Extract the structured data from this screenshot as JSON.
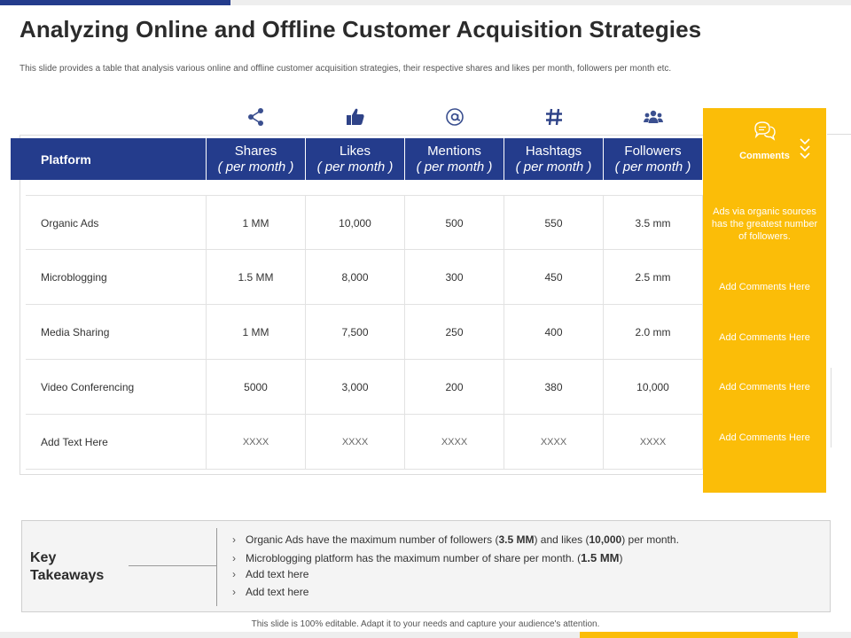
{
  "slide": {
    "title": "Analyzing Online and Offline Customer Acquisition Strategies",
    "subtitle": "This slide provides a table that analysis various online and offline customer acquisition strategies, their respective shares and likes per month, followers per month etc.",
    "footer": "This slide is 100% editable. Adapt it to your needs and capture your audience's attention."
  },
  "colors": {
    "header_blue": "#243c8c",
    "accent_yellow": "#fbbd08"
  },
  "table": {
    "platform_header": "Platform",
    "columns": [
      {
        "icon": "share-icon",
        "label": "Shares",
        "sub": "( per month )"
      },
      {
        "icon": "thumbs-up-icon",
        "label": "Likes",
        "sub": "( per month )"
      },
      {
        "icon": "at-sign-icon",
        "label": "Mentions",
        "sub": "( per month )"
      },
      {
        "icon": "hashtag-icon",
        "label": "Hashtags",
        "sub": "( per month )"
      },
      {
        "icon": "people-icon",
        "label": "Followers",
        "sub": "( per month )"
      }
    ],
    "rows": [
      {
        "platform": "Organic Ads",
        "values": [
          "1 MM",
          "10,000",
          "500",
          "550",
          "3.5 mm"
        ]
      },
      {
        "platform": "Microblogging",
        "values": [
          "1.5 MM",
          "8,000",
          "300",
          "450",
          "2.5 mm"
        ]
      },
      {
        "platform": "Media Sharing",
        "values": [
          "1 MM",
          "7,500",
          "250",
          "400",
          "2.0 mm"
        ]
      },
      {
        "platform": "Video Conferencing",
        "values": [
          "5000",
          "3,000",
          "200",
          "380",
          "10,000"
        ]
      },
      {
        "platform": "Add Text Here",
        "values": [
          "XXXX",
          "XXXX",
          "XXXX",
          "XXXX",
          "XXXX"
        ]
      }
    ]
  },
  "comments": {
    "icon": "chat-bubbles-icon",
    "header": "Comments",
    "notes": [
      "Ads via organic sources has the greatest number of followers.",
      "Add Comments Here",
      "Add Comments Here",
      "Add Comments Here",
      "Add Comments Here"
    ]
  },
  "takeaways": {
    "label_line1": "Key",
    "label_line2": "Takeaways",
    "bullet": "›",
    "items": [
      {
        "pre": "Organic Ads have the maximum number of followers (",
        "b1": "3.5 MM",
        "mid": ") and likes (",
        "b2": "10,000",
        "post": ") per month."
      },
      {
        "pre": "Microblogging platform has the maximum number of share per month. (",
        "b1": "1.5 MM",
        "mid": ")",
        "b2": "",
        "post": ""
      },
      {
        "pre": "Add text here",
        "b1": "",
        "mid": "",
        "b2": "",
        "post": ""
      },
      {
        "pre": "Add text here",
        "b1": "",
        "mid": "",
        "b2": "",
        "post": ""
      }
    ]
  }
}
